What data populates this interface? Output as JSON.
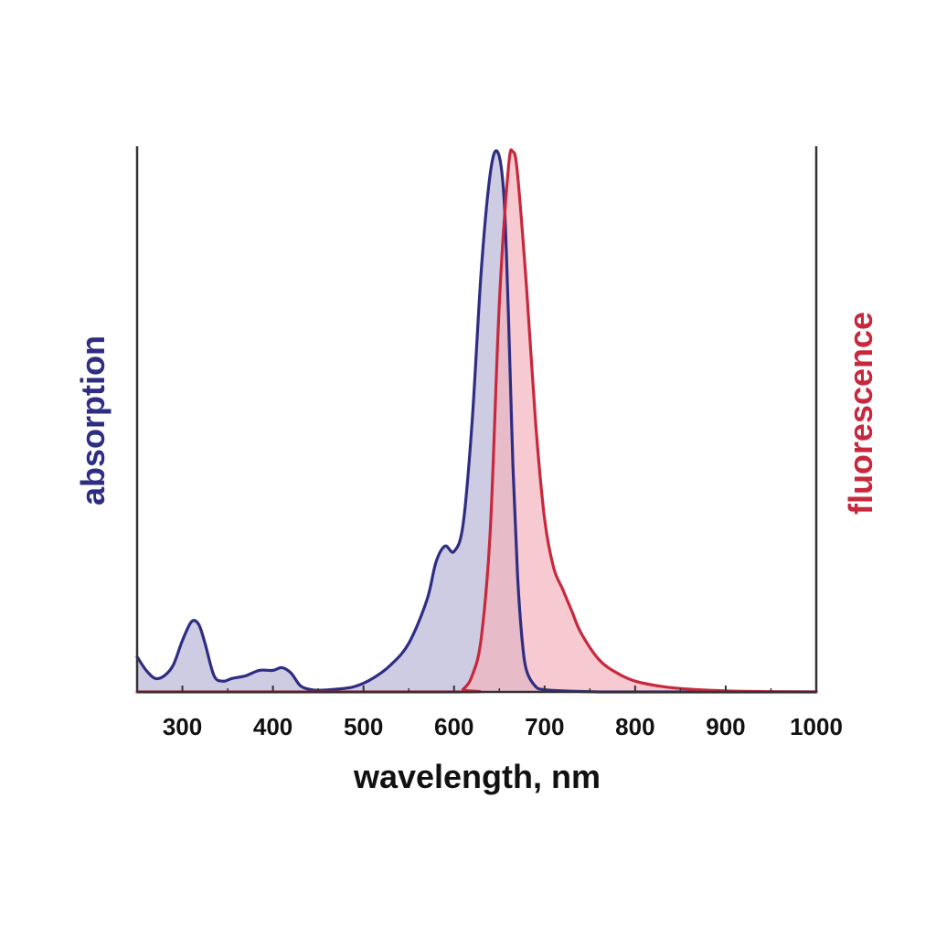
{
  "chart_data": {
    "type": "area",
    "xlabel": "wavelength, nm",
    "ylabel_left": "absorption",
    "ylabel_right": "fluorescence",
    "xlim": [
      250,
      1000
    ],
    "ylim": [
      0,
      1
    ],
    "xticks": [
      300,
      400,
      500,
      600,
      700,
      800,
      900,
      1000
    ],
    "grid": false,
    "series": [
      {
        "name": "absorption",
        "color": "#2e2d82",
        "fill": "#c9c6e0",
        "x": [
          250,
          260,
          270,
          280,
          290,
          300,
          310,
          318,
          325,
          335,
          345,
          355,
          370,
          385,
          400,
          410,
          420,
          430,
          440,
          450,
          470,
          490,
          510,
          530,
          550,
          570,
          580,
          590,
          600,
          610,
          620,
          630,
          640,
          648,
          655,
          660,
          665,
          670,
          675,
          680,
          690,
          700,
          720,
          760,
          800,
          900,
          1000
        ],
        "y": [
          0.065,
          0.04,
          0.025,
          0.03,
          0.05,
          0.095,
          0.13,
          0.125,
          0.09,
          0.03,
          0.02,
          0.025,
          0.03,
          0.04,
          0.04,
          0.045,
          0.035,
          0.012,
          0.005,
          0.003,
          0.005,
          0.01,
          0.025,
          0.05,
          0.09,
          0.17,
          0.24,
          0.27,
          0.26,
          0.31,
          0.5,
          0.78,
          0.96,
          1.0,
          0.92,
          0.7,
          0.42,
          0.22,
          0.1,
          0.04,
          0.01,
          0.004,
          0.002,
          0,
          0,
          0,
          0
        ]
      },
      {
        "name": "fluorescence",
        "color": "#c8283d",
        "fill": "#f2b3bc",
        "x": [
          250,
          600,
          610,
          620,
          630,
          640,
          650,
          660,
          665,
          670,
          680,
          690,
          700,
          710,
          720,
          730,
          740,
          760,
          780,
          800,
          830,
          860,
          900,
          950,
          1000
        ],
        "y": [
          0,
          0,
          0.005,
          0.03,
          0.1,
          0.3,
          0.72,
          0.97,
          1.0,
          0.96,
          0.75,
          0.5,
          0.32,
          0.23,
          0.19,
          0.15,
          0.11,
          0.06,
          0.035,
          0.02,
          0.01,
          0.005,
          0.002,
          0.0005,
          0
        ]
      }
    ]
  }
}
